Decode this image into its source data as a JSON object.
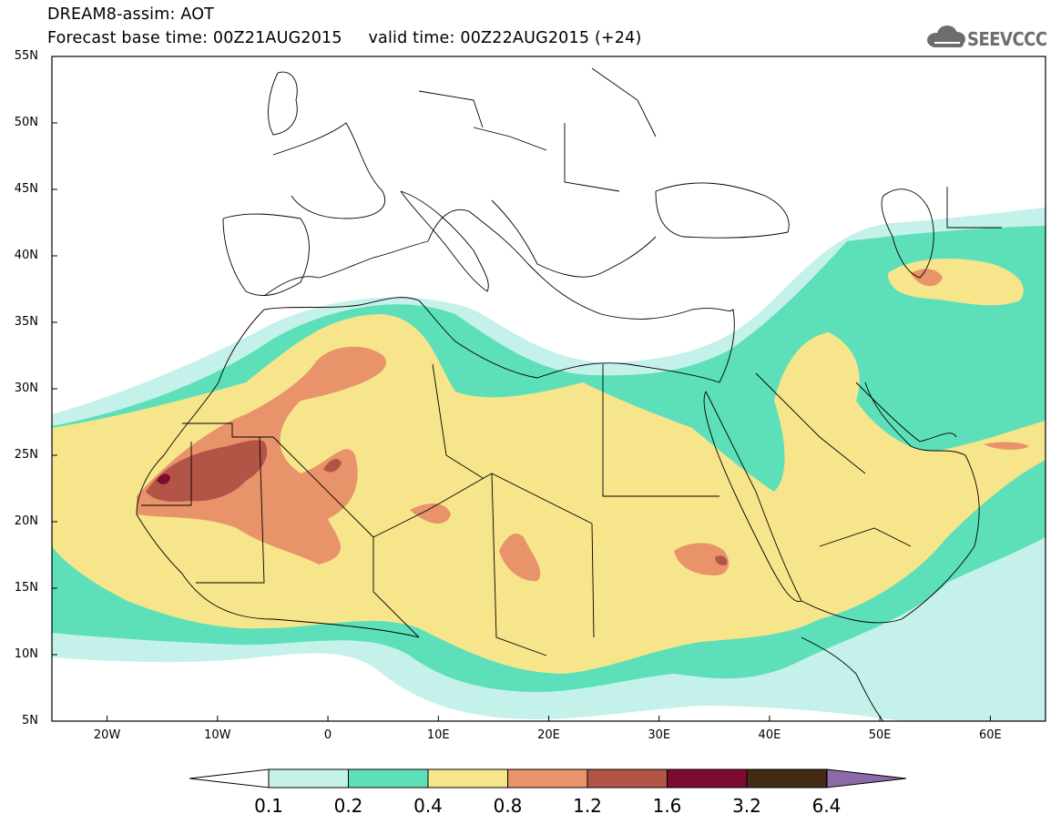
{
  "header": {
    "line1": "DREAM8-assim: AOT",
    "line2": "Forecast base time: 00Z21AUG2015     valid time: 00Z22AUG2015 (+24)"
  },
  "logo": {
    "text": "SEEVCCC",
    "icon": "cloud-icon",
    "color": "#6d6d6d"
  },
  "map": {
    "lat_range": [
      5,
      55
    ],
    "lon_range": [
      -25,
      65
    ],
    "lat_labels": [
      "55N",
      "50N",
      "45N",
      "40N",
      "35N",
      "30N",
      "25N",
      "20N",
      "15N",
      "10N",
      "5N"
    ],
    "lon_labels": [
      "20W",
      "10W",
      "0",
      "10E",
      "20E",
      "30E",
      "40E",
      "50E",
      "60E"
    ]
  },
  "colorbar": {
    "labels": [
      "0.1",
      "0.2",
      "0.4",
      "0.8",
      "1.2",
      "1.6",
      "3.2",
      "6.4"
    ],
    "colors": [
      "#c4f1ea",
      "#5de0b9",
      "#f7e58b",
      "#e8936a",
      "#b25546",
      "#7d0a30",
      "#432a15",
      "#8c6aa8"
    ]
  }
}
